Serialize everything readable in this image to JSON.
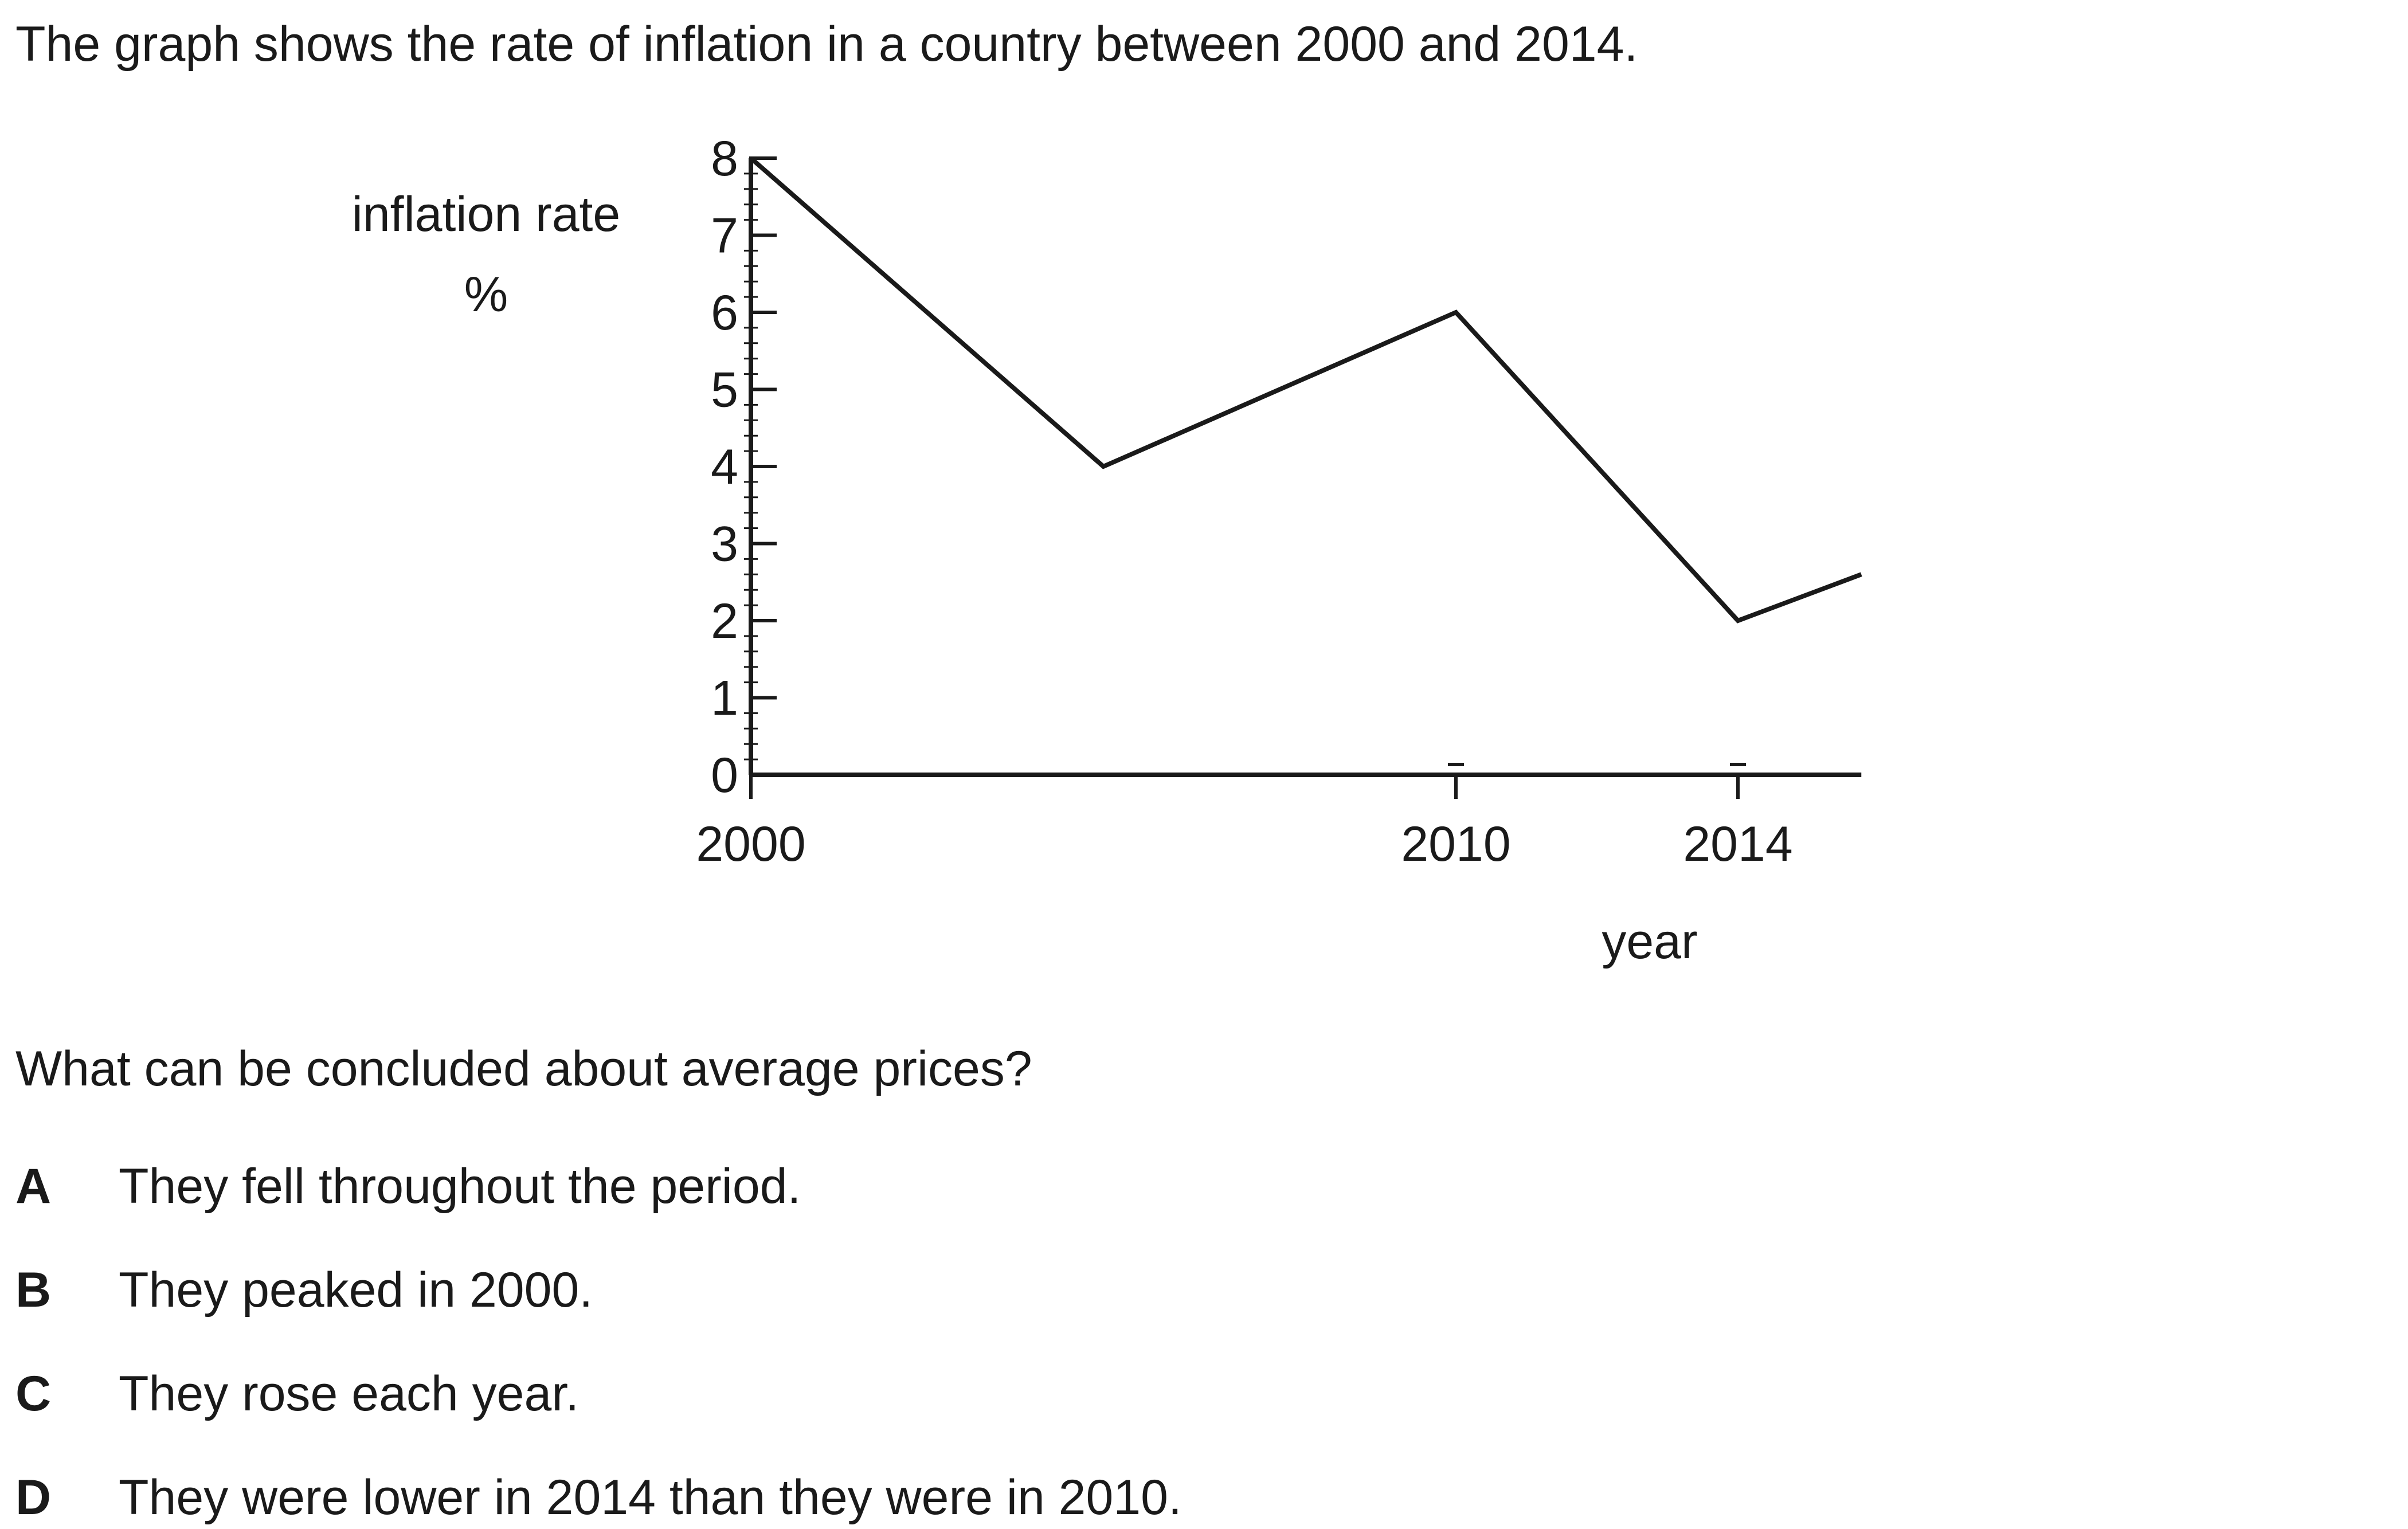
{
  "intro": "The graph shows the rate of inflation in a country between 2000 and 2014.",
  "chart_data": {
    "type": "line",
    "ylabel_line1": "inflation rate",
    "ylabel_line2": "%",
    "xlabel": "year",
    "ylim": [
      0,
      8
    ],
    "yticks": [
      0,
      1,
      2,
      3,
      4,
      5,
      6,
      7,
      8
    ],
    "xlim": [
      2000,
      2015.75
    ],
    "xticks": [
      2000,
      2010,
      2014
    ],
    "grid": false,
    "series": [
      {
        "x": [
          2000,
          2005,
          2010,
          2014,
          2015.75
        ],
        "values": [
          8,
          4,
          6,
          2,
          2.6
        ]
      }
    ]
  },
  "question": "What can be concluded about average prices?",
  "options": [
    {
      "letter": "A",
      "text": "They fell throughout the period."
    },
    {
      "letter": "B",
      "text": "They peaked in 2000."
    },
    {
      "letter": "C",
      "text": "They rose each year."
    },
    {
      "letter": "D",
      "text": "They were lower in 2014 than they were in 2010."
    }
  ]
}
